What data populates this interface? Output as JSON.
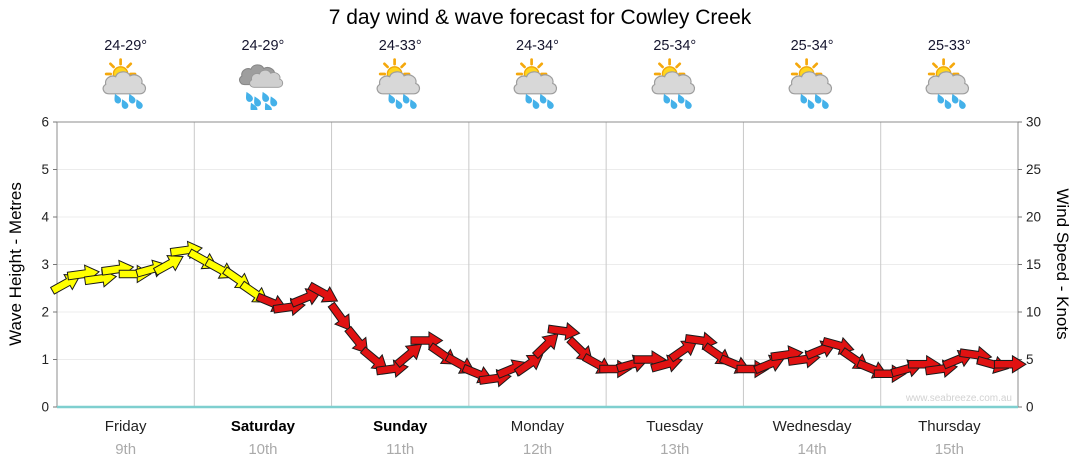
{
  "title": "7 day wind & wave forecast for Cowley Creek",
  "watermark": "www.seabreeze.com.au",
  "forecast_days": [
    {
      "name": "Friday",
      "date": "9th",
      "temp": "24-29°",
      "icon": "sun-cloud-rain",
      "bold": false
    },
    {
      "name": "Saturday",
      "date": "10th",
      "temp": "24-29°",
      "icon": "rain-cloud",
      "bold": true
    },
    {
      "name": "Sunday",
      "date": "11th",
      "temp": "24-33°",
      "icon": "sun-cloud-rain",
      "bold": true
    },
    {
      "name": "Monday",
      "date": "12th",
      "temp": "24-34°",
      "icon": "sun-cloud-rain",
      "bold": false
    },
    {
      "name": "Tuesday",
      "date": "13th",
      "temp": "25-34°",
      "icon": "sun-cloud-rain",
      "bold": false
    },
    {
      "name": "Wednesday",
      "date": "14th",
      "temp": "25-34°",
      "icon": "sun-cloud-rain",
      "bold": false
    },
    {
      "name": "Thursday",
      "date": "15th",
      "temp": "25-33°",
      "icon": "sun-cloud-rain",
      "bold": false
    }
  ],
  "axes": {
    "left_label": "Wave Height - Metres",
    "right_label": "Wind Speed - Knots",
    "left_ticks": [
      0,
      1,
      2,
      3,
      4,
      5,
      6
    ],
    "right_ticks": [
      0,
      5,
      10,
      15,
      20,
      25,
      30
    ]
  },
  "colors": {
    "yellow": "#ffff00",
    "red": "#e01212",
    "outline": "#1a1a1a",
    "grid": "#c9c9c9",
    "axis": "#8c8c8c",
    "zero_line": "#7ecfcf"
  },
  "chart_data": {
    "type": "line",
    "marker": "wind-direction-arrow",
    "title": "7 day wind & wave forecast for Cowley Creek",
    "ylabel_left": "Wave Height - Metres",
    "ylabel_right": "Wind Speed - Knots",
    "ylim_left": [
      0,
      6
    ],
    "ylim_right": [
      0,
      30
    ],
    "knots_per_metre_axis_scale": 5,
    "x_categories": [
      "Friday 9th",
      "Saturday 10th",
      "Sunday 11th",
      "Monday 12th",
      "Tuesday 13th",
      "Wednesday 14th",
      "Thursday 15th"
    ],
    "points_per_day": 8,
    "legend": "off",
    "grid": "vertical day boundaries",
    "series": [
      {
        "name": "Forecast (arrows coloured yellow then red)",
        "values_metres": [
          2.6,
          2.8,
          2.7,
          2.9,
          2.8,
          2.9,
          3.0,
          3.3,
          3.1,
          2.9,
          2.7,
          2.4,
          2.2,
          2.1,
          2.3,
          2.4,
          1.9,
          1.4,
          1.0,
          0.8,
          1.1,
          1.4,
          1.1,
          0.9,
          0.7,
          0.6,
          0.8,
          0.9,
          1.3,
          1.6,
          1.2,
          0.9,
          0.8,
          0.9,
          1.0,
          0.9,
          1.2,
          1.4,
          1.1,
          0.9,
          0.8,
          0.9,
          1.1,
          1.0,
          1.2,
          1.3,
          1.0,
          0.8,
          0.7,
          0.8,
          0.9,
          0.8,
          1.0,
          1.1,
          0.9,
          0.9
        ],
        "colors": [
          "Y",
          "Y",
          "Y",
          "Y",
          "Y",
          "Y",
          "Y",
          "Y",
          "Y",
          "Y",
          "Y",
          "Y",
          "R",
          "R",
          "R",
          "R",
          "R",
          "R",
          "R",
          "R",
          "R",
          "R",
          "R",
          "R",
          "R",
          "R",
          "R",
          "R",
          "R",
          "R",
          "R",
          "R",
          "R",
          "R",
          "R",
          "R",
          "R",
          "R",
          "R",
          "R",
          "R",
          "R",
          "R",
          "R",
          "R",
          "R",
          "R",
          "R",
          "R",
          "R",
          "R",
          "R",
          "R",
          "R",
          "R",
          "R"
        ]
      }
    ]
  }
}
